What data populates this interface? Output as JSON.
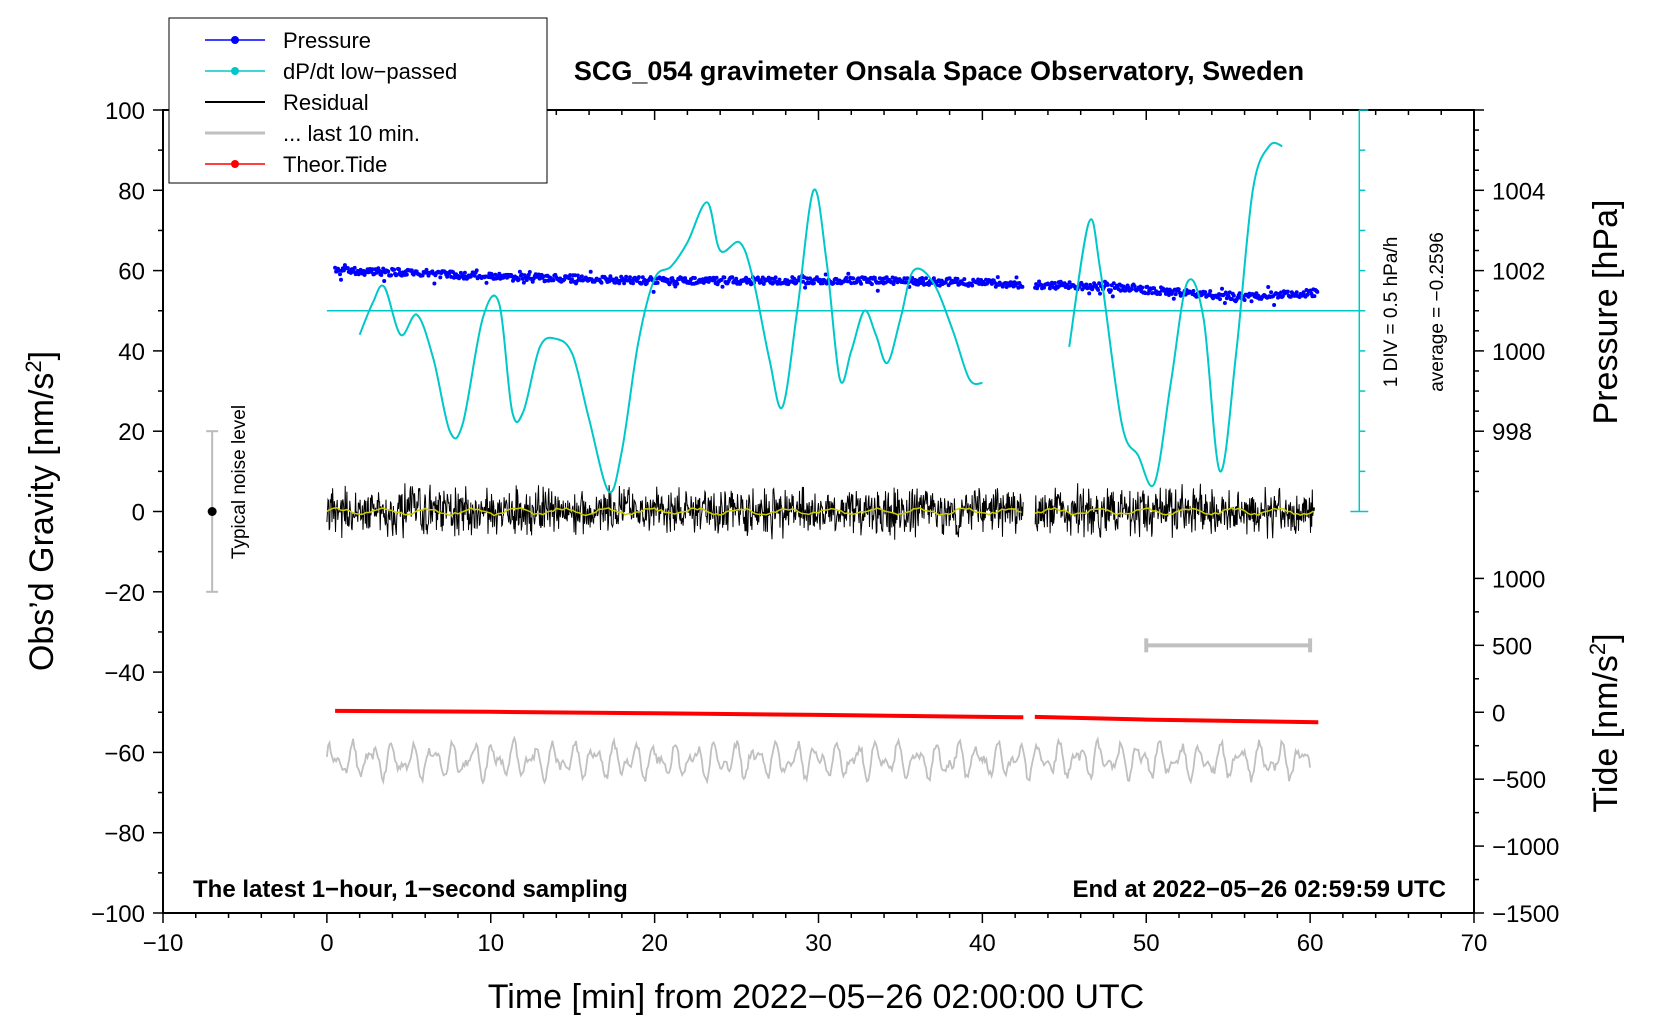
{
  "chart_data": {
    "type": "line",
    "title": "SCG_054 gravimeter Onsala Space Observatory, Sweden",
    "xlabel": "Time [min] from 2022−05−26 02:00:00 UTC",
    "ylabel_left": "Obs’d Gravity [nm/s",
    "ylabel_left_sup": "2",
    "ylabel_left_end": "]",
    "ylabel_right_top": "Pressure [hPa]",
    "ylabel_right_bottom": "Tide [nm/s",
    "ylabel_right_bottom_sup": "2",
    "ylabel_right_bottom_end": "]",
    "xlim": [
      -10,
      70
    ],
    "ylim_left": [
      -100,
      100
    ],
    "x_ticks": [
      "−10",
      "0",
      "10",
      "20",
      "30",
      "40",
      "50",
      "60",
      "70"
    ],
    "x_tick_values": [
      -10,
      0,
      10,
      20,
      30,
      40,
      50,
      60,
      70
    ],
    "y_left_ticks": [
      "−100",
      "−80",
      "−60",
      "−40",
      "−20",
      "0",
      "20",
      "40",
      "60",
      "80",
      "100"
    ],
    "y_left_tick_values": [
      -100,
      -80,
      -60,
      -40,
      -20,
      0,
      20,
      40,
      60,
      80,
      100
    ],
    "pressure_ticks": [
      "998",
      "1000",
      "1002",
      "1004"
    ],
    "pressure_tick_values": [
      998,
      1000,
      1002,
      1004
    ],
    "pressure_range_hpa": [
      996,
      1006
    ],
    "tide_ticks": [
      "−1500",
      "−1000",
      "−500",
      "0",
      "500",
      "1000"
    ],
    "tide_tick_values": [
      -1500,
      -1000,
      -500,
      0,
      500,
      1000
    ],
    "tide_range": [
      -1500,
      1500
    ],
    "legend": [
      {
        "label": "Pressure",
        "color": "#0000ff",
        "marker": true
      },
      {
        "label": "dP/dt low−passed",
        "color": "#00c8c8",
        "marker": true
      },
      {
        "label": "Residual",
        "color": "#000000",
        "marker": false
      },
      {
        "label": "... last 10 min.",
        "color": "#c0c0c0",
        "marker": false
      },
      {
        "label": "Theor.Tide",
        "color": "#ff0000",
        "marker": true
      }
    ],
    "annotations": {
      "left_note": "The latest 1−hour, 1−second sampling",
      "right_note": "End at 2022−05−26 02:59:59 UTC",
      "noise_label": "Typical noise level",
      "dpdt_scale": "1 DIV = 0.5 hPa/h",
      "dpdt_average": "average = −0.2596"
    },
    "noise_level": {
      "x": -7,
      "y_center": 0,
      "y_range": [
        -20,
        20
      ]
    },
    "data_gap": [
      42.5,
      43.2
    ],
    "series": [
      {
        "name": "Pressure",
        "axis": "pressure_hpa",
        "color": "#0000ff",
        "x": [
          0.5,
          5,
          10,
          15,
          20,
          25,
          30,
          35,
          40,
          42.5,
          43.2,
          48,
          52,
          56,
          60.5
        ],
        "values": [
          1002.0,
          1001.95,
          1001.85,
          1001.8,
          1001.75,
          1001.75,
          1001.75,
          1001.75,
          1001.7,
          1001.65,
          1001.65,
          1001.6,
          1001.45,
          1001.35,
          1001.45
        ]
      },
      {
        "name": "dP/dt low−passed",
        "axis": "left",
        "color": "#00c8c8",
        "baseline": 50,
        "x": [
          2.0,
          2.8,
          3.5,
          4.5,
          5.5,
          6.5,
          7.5,
          8.3,
          9.5,
          10.5,
          11.3,
          12.0,
          13.0,
          14.0,
          15.0,
          16.0,
          17.2,
          18.0,
          19.0,
          20.0,
          21.0,
          22.0,
          23.2,
          24.0,
          25.2,
          26.0,
          27.0,
          27.8,
          28.7,
          29.7,
          30.5,
          31.3,
          32.0,
          32.8,
          33.5,
          34.2,
          35.0,
          35.8,
          37.0,
          38.2,
          39.2,
          40.0
        ],
        "values": [
          44,
          52,
          56,
          44,
          49,
          38,
          20,
          22,
          48,
          52,
          25,
          25,
          41,
          43,
          39,
          23,
          5,
          15,
          42,
          58,
          61,
          67,
          77,
          65,
          67,
          58,
          38,
          26,
          50,
          80,
          62,
          33,
          40,
          50,
          44,
          37,
          48,
          60,
          57,
          45,
          33,
          32
        ]
      },
      {
        "name": "dP/dt low−passed (after gap)",
        "axis": "left",
        "color": "#00c8c8",
        "baseline": 50,
        "x": [
          45.3,
          46.5,
          47.2,
          48.5,
          49.5,
          50.5,
          51.5,
          52.5,
          53.5,
          54.5,
          55.5,
          56.5,
          57.5,
          58.3
        ],
        "values": [
          41,
          72,
          60,
          22,
          14,
          7,
          32,
          57,
          48,
          10,
          40,
          80,
          91,
          91
        ]
      },
      {
        "name": "Residual",
        "axis": "left",
        "color": "#000000",
        "x": [
          0,
          42.5,
          43.2,
          60.3
        ],
        "values": [
          0,
          0,
          0,
          0
        ],
        "noise_amplitude": 6
      },
      {
        "name": "... last 10 min.",
        "axis": "left",
        "color": "#c0c0c0",
        "x": [
          0,
          60
        ],
        "values": [
          -62,
          -62
        ],
        "oscillation_amplitude": 4
      },
      {
        "name": "Theor.Tide",
        "axis": "tide",
        "color": "#ff0000",
        "x": [
          0.5,
          10,
          20,
          30,
          42.5,
          43.2,
          50,
          60.5
        ],
        "values": [
          10,
          3,
          -8,
          -20,
          -38,
          -35,
          -55,
          -75
        ]
      }
    ],
    "grey_bar": {
      "x": [
        50,
        60
      ],
      "tide_value": 500
    }
  }
}
